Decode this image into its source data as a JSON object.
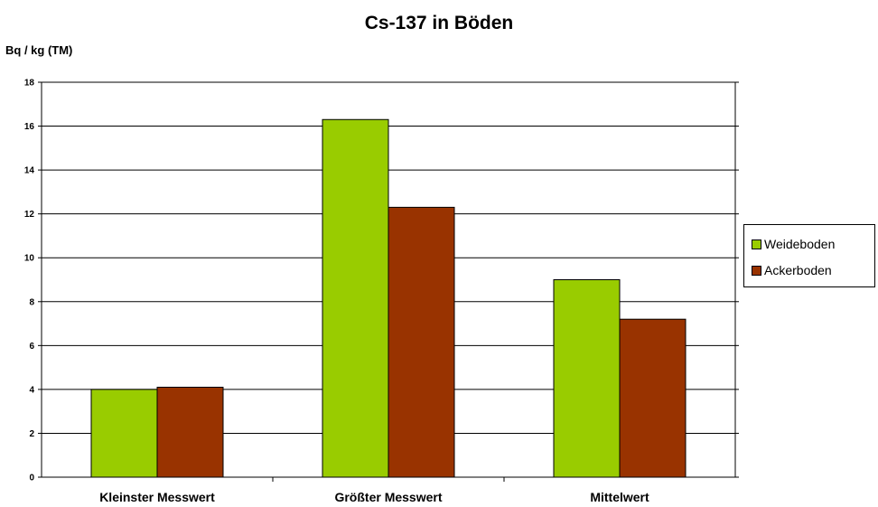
{
  "chart_data": {
    "type": "bar",
    "title": "Cs-137 in Böden",
    "ylabel": "Bq / kg (TM)",
    "xlabel": "",
    "categories": [
      "Kleinster Messwert",
      "Größter Messwert",
      "Mittelwert"
    ],
    "series": [
      {
        "name": "Weideboden",
        "color": "#99cc00",
        "values": [
          4.0,
          16.3,
          9.0
        ]
      },
      {
        "name": "Ackerboden",
        "color": "#993300",
        "values": [
          4.1,
          12.3,
          7.2
        ]
      }
    ],
    "ylim": [
      0,
      18
    ],
    "yticks": [
      "0",
      "2",
      "4",
      "6",
      "8",
      "10",
      "12",
      "14",
      "16",
      "18"
    ],
    "grid": true,
    "legend_position": "right"
  }
}
